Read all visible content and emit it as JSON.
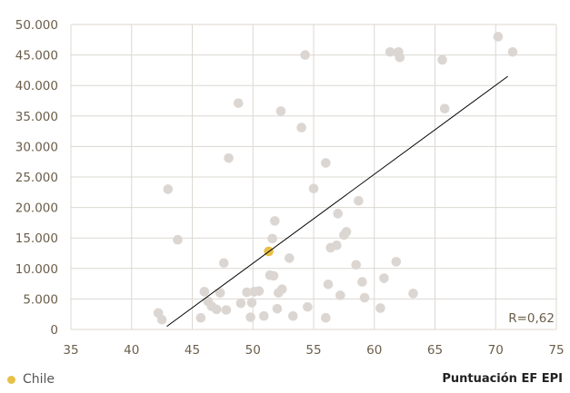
{
  "chart_data": {
    "type": "scatter",
    "xlabel": "Puntuación EF EPI",
    "ylabel": "",
    "xlim": [
      35,
      75
    ],
    "ylim": [
      0,
      50000
    ],
    "x_ticks": [
      "35",
      "40",
      "45",
      "50",
      "55",
      "60",
      "65",
      "70",
      "75"
    ],
    "y_ticks": [
      "0",
      "5.000",
      "10.000",
      "15.000",
      "20.000",
      "25.000",
      "30.000",
      "35.000",
      "40.000",
      "45.000",
      "50.000"
    ],
    "grid": "vertical and horizontal",
    "annotation": "R=0,62",
    "legend": {
      "label": "Chile",
      "position": "bottom-left"
    },
    "colors": {
      "points": "#dcd6d2",
      "highlight": "#e8c048",
      "trendline": "#000000",
      "grid": "#dcd8d2",
      "tick_text": "#6b5d4a"
    },
    "series": [
      {
        "points": [
          [
            42.2,
            2700
          ],
          [
            42.5,
            1600
          ],
          [
            43.0,
            23000
          ],
          [
            43.8,
            14700
          ],
          [
            45.7,
            1900
          ],
          [
            46.0,
            6200
          ],
          [
            46.3,
            4600
          ],
          [
            46.6,
            3800
          ],
          [
            47.0,
            3300
          ],
          [
            47.3,
            6000
          ],
          [
            47.6,
            10900
          ],
          [
            47.8,
            3200
          ],
          [
            48.0,
            28100
          ],
          [
            48.8,
            37100
          ],
          [
            49.0,
            4300
          ],
          [
            49.5,
            6100
          ],
          [
            49.8,
            2000
          ],
          [
            49.9,
            4400
          ],
          [
            50.1,
            6200
          ],
          [
            50.5,
            6300
          ],
          [
            50.9,
            2200
          ],
          [
            51.4,
            8900
          ],
          [
            51.6,
            14900
          ],
          [
            51.7,
            8800
          ],
          [
            51.8,
            17800
          ],
          [
            52.0,
            3400
          ],
          [
            52.1,
            6000
          ],
          [
            52.3,
            35800
          ],
          [
            52.4,
            6600
          ],
          [
            53.0,
            11700
          ],
          [
            53.3,
            2200
          ],
          [
            54.0,
            33100
          ],
          [
            54.3,
            45000
          ],
          [
            54.5,
            3700
          ],
          [
            55.0,
            23100
          ],
          [
            56.0,
            27300
          ],
          [
            56.0,
            1900
          ],
          [
            56.2,
            7400
          ],
          [
            56.4,
            13400
          ],
          [
            56.9,
            13800
          ],
          [
            57.0,
            19000
          ],
          [
            57.2,
            5600
          ],
          [
            57.5,
            15500
          ],
          [
            57.7,
            16000
          ],
          [
            58.5,
            10600
          ],
          [
            58.7,
            21100
          ],
          [
            59.0,
            7800
          ],
          [
            59.2,
            5200
          ],
          [
            60.5,
            3500
          ],
          [
            60.8,
            8400
          ],
          [
            61.3,
            45500
          ],
          [
            61.8,
            11100
          ],
          [
            61.9,
            45400
          ],
          [
            62.0,
            45500
          ],
          [
            62.1,
            44600
          ],
          [
            63.2,
            5900
          ],
          [
            65.6,
            44200
          ],
          [
            65.8,
            36200
          ],
          [
            70.2,
            48000
          ],
          [
            71.4,
            45500
          ]
        ]
      },
      {
        "name": "Chile",
        "points": [
          [
            51.3,
            12800
          ]
        ]
      }
    ],
    "trendline": {
      "x": [
        42.9,
        71.0
      ],
      "y": [
        500,
        41500
      ]
    }
  }
}
